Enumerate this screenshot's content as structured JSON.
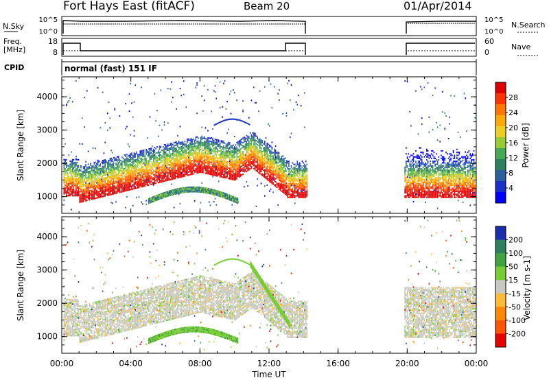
{
  "header": {
    "radar": "Fort Hays East (fitACF)",
    "beam": "Beam 20",
    "date": "01/Apr/2014"
  },
  "noise_panel": {
    "left_label": "N.Sky",
    "right_label": "N.Search",
    "left_ticks": [
      "10^5",
      "10^0"
    ],
    "right_ticks": [
      "10^5",
      "10^0"
    ]
  },
  "freq_panel": {
    "left_label_1": "Freq.",
    "left_label_2": "[MHz]",
    "right_label": "Nave",
    "left_ticks": [
      "18",
      "8"
    ],
    "right_ticks": [
      "60",
      "0"
    ]
  },
  "cpid": {
    "label": "CPID",
    "mode": "normal (fast) 151 IF"
  },
  "chart_data": {
    "type": "heatmap",
    "x_ticks": [
      "00:00",
      "04:00",
      "08:00",
      "12:00",
      "16:00",
      "20:00",
      "00:00"
    ],
    "x_range_hours": [
      0,
      24
    ],
    "xlabel": "Time UT",
    "data_gaps_hours": [
      [
        14.2,
        19.8
      ]
    ],
    "power_panel": {
      "ylabel": "Slant Range [km]",
      "y_ticks": [
        "1000",
        "2000",
        "3000",
        "4000"
      ],
      "ylim": [
        500,
        4600
      ],
      "colorbar_label": "Power [dB]",
      "colorbar_ticks": [
        "28",
        "24",
        "20",
        "16",
        "12",
        "8",
        "4"
      ],
      "colorbar_colors": [
        "#e00000",
        "#ff3300",
        "#ff7700",
        "#ffaa00",
        "#eecc22",
        "#99cc33",
        "#44aa55",
        "#2d7f5f",
        "#2a5fa0",
        "#1a30c8",
        "#0000ff"
      ]
    },
    "velocity_panel": {
      "ylabel": "Slant Range [km]",
      "y_ticks": [
        "1000",
        "2000",
        "3000",
        "4000"
      ],
      "ylim": [
        500,
        4600
      ],
      "colorbar_label": "Velocity [m s-1]",
      "colorbar_ticks": [
        "200",
        "100",
        "50",
        "15",
        "-15",
        "-50",
        "-100",
        "-200"
      ],
      "colorbar_colors": [
        "#1a2fb0",
        "#2d7f5f",
        "#3fa33f",
        "#77cc33",
        "#c8c8c0",
        "#ffbb33",
        "#ff8800",
        "#ff5500",
        "#e80000"
      ]
    }
  }
}
